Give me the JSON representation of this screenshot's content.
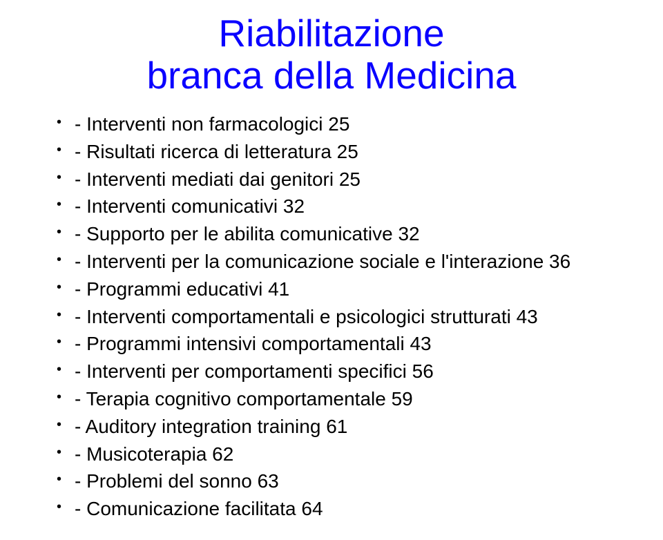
{
  "title": {
    "line1": "Riabilitazione",
    "line2": "branca della Medicina",
    "color": "#0a00ff",
    "fontsize": 55
  },
  "body": {
    "color": "#000000",
    "fontsize": 28
  },
  "bullets": [
    "- Interventi non farmacologici 25",
    "- Risultati ricerca di letteratura 25",
    "- Interventi mediati dai genitori 25",
    "- Interventi comunicativi 32",
    "- Supporto per le abilita comunicative 32",
    "- Interventi per la comunicazione sociale e l'interazione 36",
    "- Programmi educativi 41",
    "- Interventi comportamentali e psicologici strutturati 43",
    "- Programmi intensivi comportamentali 43",
    "- Interventi per comportamenti specifici 56",
    "- Terapia cognitivo comportamentale 59",
    "- Auditory integration training 61",
    "- Musicoterapia 62",
    "- Problemi del sonno 63",
    "- Comunicazione facilitata 64"
  ]
}
